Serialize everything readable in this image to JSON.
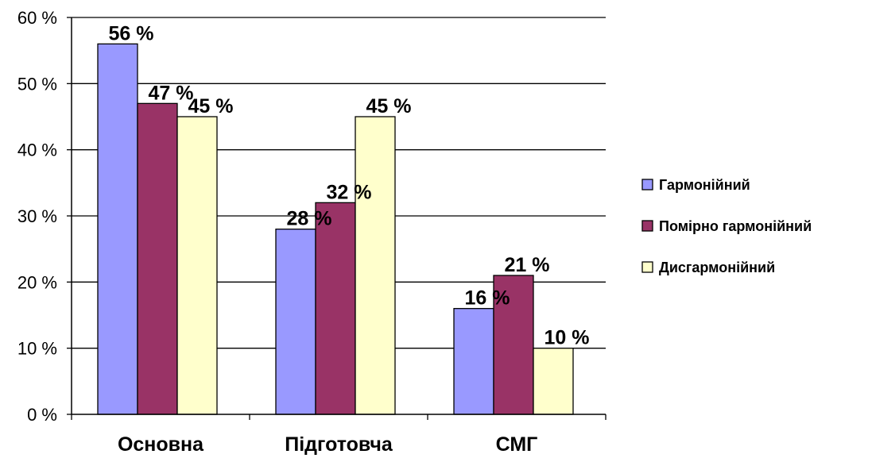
{
  "chart_data": {
    "type": "bar",
    "categories": [
      "Основна",
      "Підготовча",
      "СМГ"
    ],
    "series": [
      {
        "name": "Гармонійний",
        "values": [
          56,
          28,
          16
        ],
        "color": "#9999ff"
      },
      {
        "name": "Помірно гармонійний",
        "values": [
          47,
          32,
          21
        ],
        "color": "#993366"
      },
      {
        "name": "Дисгармонійний",
        "values": [
          45,
          45,
          10
        ],
        "color": "#ffffcc"
      }
    ],
    "value_suffix": " %",
    "ylim": [
      0,
      60
    ],
    "yticks": [
      0,
      10,
      20,
      30,
      40,
      50,
      60
    ],
    "ytick_labels": [
      "0 %",
      "10 %",
      "20 %",
      "30 %",
      "40 %",
      "50 %",
      "60 %"
    ],
    "data_labels": [
      [
        "56 %",
        "47 %",
        "45 %"
      ],
      [
        "28 %",
        "32 %",
        "45 %"
      ],
      [
        "16 %",
        "21 %",
        "10 %"
      ]
    ],
    "grid": true,
    "legend_position": "right"
  }
}
